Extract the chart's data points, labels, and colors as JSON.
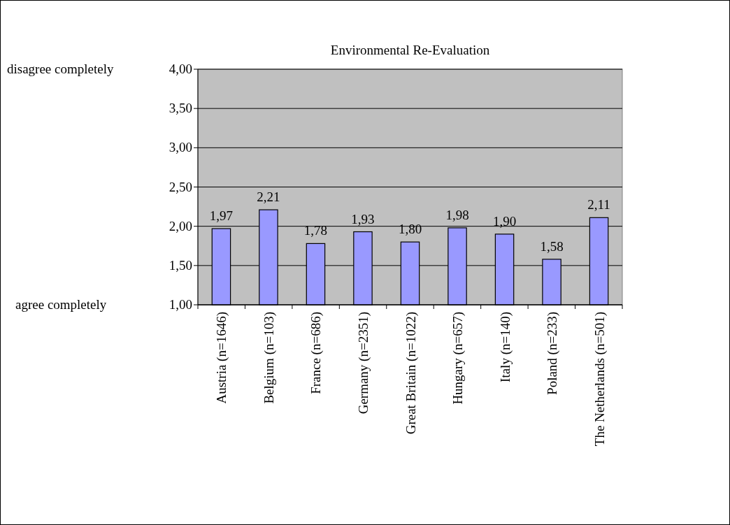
{
  "chart_data": {
    "type": "bar",
    "title": "Environmental Re-Evaluation",
    "categories": [
      "Austria (n=1646)",
      "Belgium (n=103)",
      "France (n=686)",
      "Germany (n=2351)",
      "Great Britain (n=1022)",
      "Hungary (n=657)",
      "Italy (n=140)",
      "Poland (n=233)",
      "The Netherlands (n=501)"
    ],
    "values": [
      1.97,
      2.21,
      1.78,
      1.93,
      1.8,
      1.98,
      1.9,
      1.58,
      2.11
    ],
    "value_labels": [
      "1,97",
      "2,21",
      "1,78",
      "1,93",
      "1,80",
      "1,98",
      "1,90",
      "1,58",
      "2,11"
    ],
    "color": "#9999ff",
    "ylim": [
      1,
      4
    ],
    "yticks": [
      {
        "value": 1,
        "label": "1,00"
      },
      {
        "value": 1.5,
        "label": "1,50"
      },
      {
        "value": 2,
        "label": "2,00"
      },
      {
        "value": 2.5,
        "label": "2,50"
      },
      {
        "value": 3,
        "label": "3,00"
      },
      {
        "value": 3.5,
        "label": "3,50"
      },
      {
        "value": 4,
        "label": "4,00"
      }
    ],
    "grid": "y",
    "annotations": [
      "disagree completely",
      "agree completely"
    ]
  }
}
